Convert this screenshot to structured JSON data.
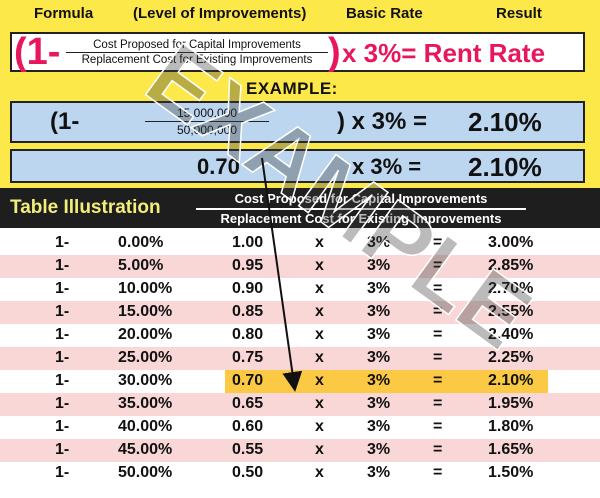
{
  "header": {
    "formula": "Formula",
    "level": "(Level of Improvements)",
    "basic_rate": "Basic Rate",
    "result": "Result"
  },
  "formula": {
    "open": "(1-",
    "numerator": "Cost Proposed for Capital Improvements",
    "denominator": "Replacement Cost for Existing Improvements",
    "close": ")",
    "tail": "x 3%= Rent Rate"
  },
  "example": {
    "label": "EXAMPLE:",
    "line1": {
      "open": "(1-",
      "numerator": "15,000,000",
      "denominator": "50,000,000",
      "tail": ") x 3% =",
      "result": "2.10%"
    },
    "line2": {
      "value": "0.70",
      "tail": "x 3% =",
      "result": "2.10%"
    }
  },
  "watermark": "EXAMPLE",
  "table": {
    "title": "Table Illustration",
    "numerator": "Cost Proposed for Capital Improvements",
    "denominator": "Replacement Cost for Existing Improvements",
    "highlight_index": 6,
    "rows": [
      {
        "one": "1-",
        "pct": "0.00%",
        "ratio": "1.00",
        "x": "x",
        "rate": "3%",
        "eq": "=",
        "result": "3.00%"
      },
      {
        "one": "1-",
        "pct": "5.00%",
        "ratio": "0.95",
        "x": "x",
        "rate": "3%",
        "eq": "=",
        "result": "2.85%"
      },
      {
        "one": "1-",
        "pct": "10.00%",
        "ratio": "0.90",
        "x": "x",
        "rate": "3%",
        "eq": "=",
        "result": "2.70%"
      },
      {
        "one": "1-",
        "pct": "15.00%",
        "ratio": "0.85",
        "x": "x",
        "rate": "3%",
        "eq": "=",
        "result": "2.55%"
      },
      {
        "one": "1-",
        "pct": "20.00%",
        "ratio": "0.80",
        "x": "x",
        "rate": "3%",
        "eq": "=",
        "result": "2.40%"
      },
      {
        "one": "1-",
        "pct": "25.00%",
        "ratio": "0.75",
        "x": "x",
        "rate": "3%",
        "eq": "=",
        "result": "2.25%"
      },
      {
        "one": "1-",
        "pct": "30.00%",
        "ratio": "0.70",
        "x": "x",
        "rate": "3%",
        "eq": "=",
        "result": "2.10%"
      },
      {
        "one": "1-",
        "pct": "35.00%",
        "ratio": "0.65",
        "x": "x",
        "rate": "3%",
        "eq": "=",
        "result": "1.95%"
      },
      {
        "one": "1-",
        "pct": "40.00%",
        "ratio": "0.60",
        "x": "x",
        "rate": "3%",
        "eq": "=",
        "result": "1.80%"
      },
      {
        "one": "1-",
        "pct": "45.00%",
        "ratio": "0.55",
        "x": "x",
        "rate": "3%",
        "eq": "=",
        "result": "1.65%"
      },
      {
        "one": "1-",
        "pct": "50.00%",
        "ratio": "0.50",
        "x": "x",
        "rate": "3%",
        "eq": "=",
        "result": "1.50%"
      }
    ]
  },
  "colors": {
    "yellow_panel": "#fde84a",
    "formula_red": "#e8175d",
    "example_blue": "#bcd6ef",
    "band_dark": "#1e1e1e",
    "title_yellow": "#f2ee7a",
    "row_pink": "#f9d7d7",
    "highlight": "#fcc944"
  }
}
